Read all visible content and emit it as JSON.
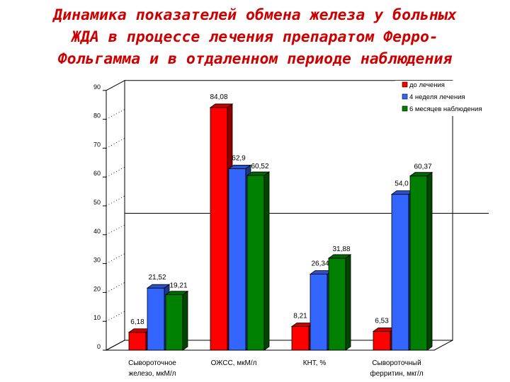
{
  "title_lines": [
    "Динамика показателей обмена железа у больных",
    "ЖДА в процессе лечения препаратом Ферро-",
    "Фольгамма и в отдаленном периоде наблюдения"
  ],
  "colors": {
    "s0": "#ff0000",
    "s1": "#3366ff",
    "s2": "#008000",
    "title": "#cc0000"
  },
  "chart_data": {
    "type": "bar",
    "title": "Динамика показателей обмена железа у больных ЖДА в процессе лечения препаратом Ферро-Фольгамма и в отдаленном периоде наблюдения",
    "xlabel": "",
    "ylabel": "",
    "ylim": [
      0,
      90
    ],
    "yticks": [
      0,
      10,
      20,
      30,
      40,
      50,
      60,
      70,
      80,
      90
    ],
    "ytick_labels": [
      "0",
      "10",
      "20",
      "30",
      "40",
      "50",
      "60",
      "70",
      "80",
      "90"
    ],
    "reference_line": 44,
    "categories": [
      [
        "Сывороточное",
        "железо, мкМ/л"
      ],
      [
        "ОЖСС, мкМ/л"
      ],
      [
        "КНТ, %"
      ],
      [
        "Сывороточный",
        "ферритин, мкг/л"
      ]
    ],
    "legend_position": "top-right",
    "series": [
      {
        "name": "до лечения",
        "color": "#ff0000",
        "values": [
          6.18,
          84.08,
          8.21,
          6.53
        ],
        "labels": [
          "6,18",
          "84,08",
          "8,21",
          "6,53"
        ]
      },
      {
        "name": "4 неделя лечения",
        "color": "#3366ff",
        "values": [
          21.52,
          62.9,
          26.34,
          54.0
        ],
        "labels": [
          "21,52",
          "62,9",
          "26,34",
          "54,0"
        ]
      },
      {
        "name": "6 месяцев наблюдения",
        "color": "#008000",
        "values": [
          19.21,
          60.52,
          31.88,
          60.37
        ],
        "labels": [
          "19,21",
          "60,52",
          "31,88",
          "60,37"
        ]
      }
    ]
  }
}
